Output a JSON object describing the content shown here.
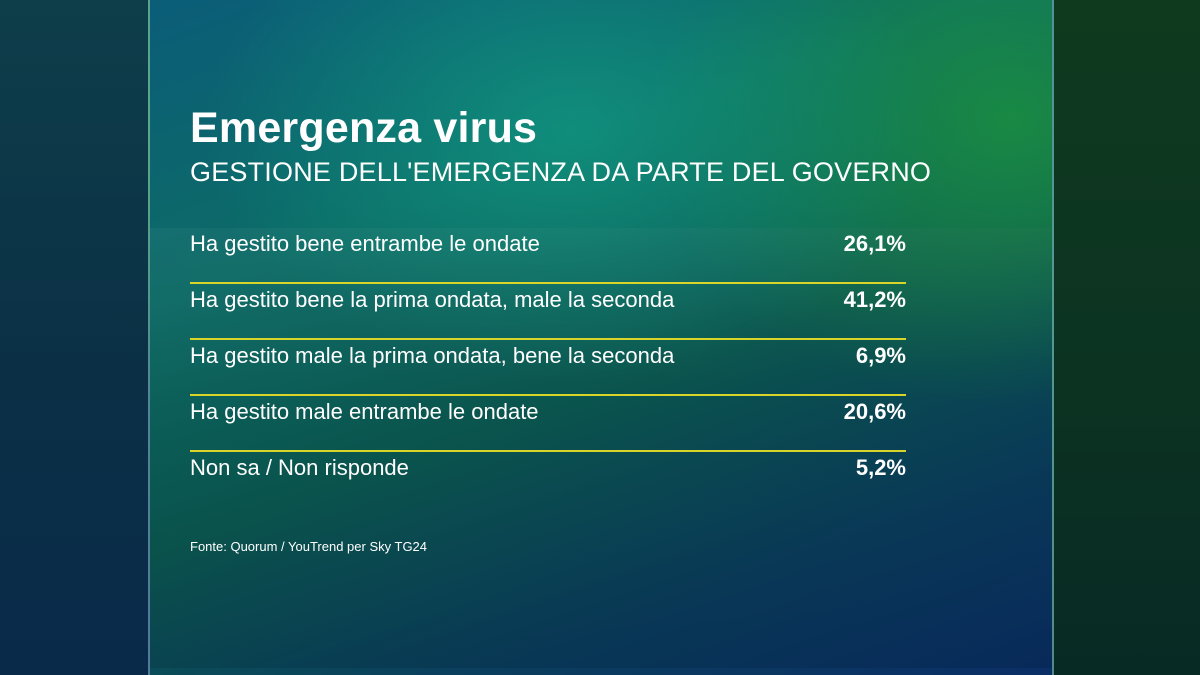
{
  "header": {
    "title": "Emergenza virus",
    "subtitle": "GESTIONE DELL'EMERGENZA DA PARTE DEL GOVERNO"
  },
  "chart_data": {
    "type": "table",
    "title": "Emergenza virus",
    "subtitle": "GESTIONE DELL'EMERGENZA DA PARTE DEL GOVERNO",
    "categories": [
      "Ha gestito bene entrambe le ondate",
      "Ha gestito bene la prima ondata, male la seconda",
      "Ha gestito male la prima ondata, bene la seconda",
      "Ha gestito male entrambe le ondate",
      "Non sa / Non risponde"
    ],
    "values": [
      26.1,
      41.2,
      6.9,
      20.6,
      5.2
    ],
    "value_labels": [
      "26,1%",
      "41,2%",
      "6,9%",
      "20,6%",
      "5,2%"
    ]
  },
  "footer": {
    "source": "Fonte: Quorum / YouTrend per Sky TG24"
  },
  "colors": {
    "divider": "#d8d42a",
    "text": "#ffffff",
    "panel_teal": "#0c6b66",
    "panel_green": "#1e963c",
    "panel_blue": "#0a2e66"
  }
}
